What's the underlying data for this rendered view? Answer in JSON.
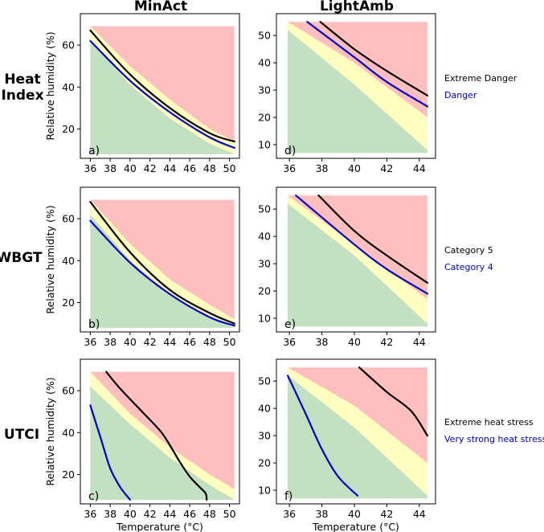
{
  "figure": {
    "column_titles": [
      "MinAct",
      "LightAmb"
    ],
    "row_titles": [
      [
        "Heat",
        "Index"
      ],
      [
        "WBGT"
      ],
      [
        "UTCI"
      ]
    ],
    "colors": {
      "danger_zone": "#ffbfbf",
      "transition_zone": "#ffffbf",
      "safe_zone": "#c2e0c2",
      "upper_threshold_line": "#000000",
      "lower_threshold_line": "#0000cc"
    }
  },
  "chart_data": [
    {
      "id": "a",
      "panel_label": "a)",
      "type": "area",
      "row": 0,
      "col": 0,
      "xlabel": "",
      "ylabel": "Relative humidity (%)",
      "xlim": [
        35.0,
        51.0
      ],
      "ylim": [
        6,
        75
      ],
      "xdomain": [
        36,
        50.5
      ],
      "xticks": [
        36,
        38,
        40,
        42,
        44,
        46,
        48,
        50
      ],
      "yticks": [
        20,
        40,
        60
      ],
      "regions_ymax": 69,
      "yellow_bottom": {
        "x": [
          36,
          40,
          44,
          48,
          50.5
        ],
        "y": [
          62,
          41,
          25,
          13,
          8
        ]
      },
      "yellow_top": {
        "x": [
          36,
          40,
          44,
          48,
          50.5
        ],
        "y": [
          69,
          50,
          34,
          20,
          14
        ]
      },
      "series": [
        {
          "name": "Extreme Danger",
          "x": [
            36,
            40,
            44,
            48,
            50.5
          ],
          "y": [
            67,
            46,
            30,
            18,
            14
          ]
        },
        {
          "name": "Danger",
          "x": [
            36,
            40,
            44,
            48,
            50.5
          ],
          "y": [
            62,
            43,
            28,
            16,
            11
          ]
        }
      ]
    },
    {
      "id": "b",
      "panel_label": "b)",
      "type": "area",
      "row": 1,
      "col": 0,
      "xlabel": "",
      "ylabel": "Relative humidity (%)",
      "xlim": [
        35.0,
        51.0
      ],
      "ylim": [
        6,
        75
      ],
      "xdomain": [
        36,
        50.5
      ],
      "xticks": [
        36,
        38,
        40,
        42,
        44,
        46,
        48,
        50
      ],
      "yticks": [
        20,
        40,
        60
      ],
      "regions_ymax": 69,
      "yellow_bottom": {
        "x": [
          36,
          40,
          44,
          48,
          50.5
        ],
        "y": [
          62,
          40,
          24,
          13,
          8
        ]
      },
      "yellow_top": {
        "x": [
          36,
          40,
          44,
          48,
          50.5
        ],
        "y": [
          69,
          48,
          31,
          19,
          12
        ]
      },
      "series": [
        {
          "name": "Category 5",
          "x": [
            36,
            40,
            44,
            48,
            50.5
          ],
          "y": [
            68,
            44,
            26,
            15,
            10
          ]
        },
        {
          "name": "Category 4",
          "x": [
            36,
            40,
            44,
            48,
            50.5
          ],
          "y": [
            59,
            39,
            24,
            13,
            9
          ]
        }
      ]
    },
    {
      "id": "c",
      "panel_label": "c)",
      "type": "area",
      "row": 2,
      "col": 0,
      "xlabel": "Temperature (°C)",
      "ylabel": "Relative humidity (%)",
      "xlim": [
        35.0,
        51.0
      ],
      "ylim": [
        6,
        75
      ],
      "xdomain": [
        36,
        50.5
      ],
      "xticks": [
        36,
        38,
        40,
        42,
        44,
        46,
        48,
        50
      ],
      "yticks": [
        20,
        40,
        60
      ],
      "regions_ymax": 69,
      "yellow_bottom": {
        "x": [
          36,
          40,
          44,
          48,
          50.5
        ],
        "y": [
          62,
          44,
          28,
          15,
          8
        ]
      },
      "yellow_top": {
        "x": [
          36,
          40,
          44,
          48,
          50.5
        ],
        "y": [
          69,
          49,
          33,
          20,
          13
        ]
      },
      "series": [
        {
          "name": "Extreme heat stress",
          "x": [
            37.6,
            39,
            41,
            43,
            44,
            45,
            46,
            47,
            47.6,
            47.7
          ],
          "y": [
            69,
            61,
            51,
            41,
            34,
            26,
            19,
            14,
            11,
            8
          ]
        },
        {
          "name": "Very strong heat stress",
          "x": [
            36,
            37,
            38,
            39,
            40
          ],
          "y": [
            53,
            38,
            23,
            14,
            8
          ]
        }
      ]
    },
    {
      "id": "d",
      "panel_label": "d)",
      "type": "area",
      "row": 0,
      "col": 1,
      "xlabel": "",
      "ylabel": "",
      "xlim": [
        35.2,
        45.0
      ],
      "ylim": [
        5,
        58
      ],
      "xdomain": [
        35.9,
        44.5
      ],
      "xticks": [
        36,
        38,
        40,
        42,
        44
      ],
      "yticks": [
        10,
        20,
        30,
        40,
        50
      ],
      "regions_ymax": 55,
      "yellow_bottom": {
        "x": [
          35.9,
          40,
          44.5
        ],
        "y": [
          52,
          32,
          8
        ]
      },
      "yellow_top": {
        "x": [
          35.9,
          40,
          44.5
        ],
        "y": [
          55,
          40,
          20
        ]
      },
      "series": [
        {
          "name": "Extreme Danger",
          "x": [
            37.9,
            40,
            42,
            44.5
          ],
          "y": [
            55,
            45,
            37,
            28
          ]
        },
        {
          "name": "Danger",
          "x": [
            37.1,
            40,
            42,
            44.5
          ],
          "y": [
            55,
            42,
            33,
            24
          ]
        }
      ]
    },
    {
      "id": "e",
      "panel_label": "e)",
      "type": "area",
      "row": 1,
      "col": 1,
      "xlabel": "",
      "ylabel": "",
      "xlim": [
        35.2,
        45.0
      ],
      "ylim": [
        5,
        58
      ],
      "xdomain": [
        35.9,
        44.5
      ],
      "xticks": [
        36,
        38,
        40,
        42,
        44
      ],
      "yticks": [
        10,
        20,
        30,
        40,
        50
      ],
      "regions_ymax": 55,
      "yellow_bottom": {
        "x": [
          35.9,
          40,
          44.5
        ],
        "y": [
          52,
          33,
          8
        ]
      },
      "yellow_top": {
        "x": [
          35.9,
          40,
          44.5
        ],
        "y": [
          55,
          37,
          17
        ]
      },
      "series": [
        {
          "name": "Category 5",
          "x": [
            37.8,
            40,
            42,
            44.5
          ],
          "y": [
            55,
            42,
            33,
            23
          ]
        },
        {
          "name": "Category 4",
          "x": [
            36.4,
            40,
            42,
            44.5
          ],
          "y": [
            55,
            37,
            28,
            19
          ]
        }
      ]
    },
    {
      "id": "f",
      "panel_label": "f)",
      "type": "area",
      "row": 2,
      "col": 1,
      "xlabel": "Temperature (°C)",
      "ylabel": "",
      "xlim": [
        35.2,
        45.0
      ],
      "ylim": [
        5,
        58
      ],
      "xdomain": [
        35.9,
        44.5
      ],
      "xticks": [
        36,
        38,
        40,
        42,
        44
      ],
      "yticks": [
        10,
        20,
        30,
        40,
        50
      ],
      "regions_ymax": 55,
      "yellow_bottom": {
        "x": [
          35.9,
          40,
          44.5
        ],
        "y": [
          52,
          33,
          8
        ]
      },
      "yellow_top": {
        "x": [
          35.9,
          40,
          44.5
        ],
        "y": [
          55,
          41,
          20
        ]
      },
      "series": [
        {
          "name": "Extreme heat stress",
          "x": [
            40.3,
            42,
            43.5,
            44.5
          ],
          "y": [
            55,
            46,
            39,
            30
          ]
        },
        {
          "name": "Very strong heat stress",
          "x": [
            35.9,
            37,
            38,
            39,
            40.2
          ],
          "y": [
            52,
            38,
            25,
            15,
            8
          ]
        }
      ]
    }
  ],
  "legends": [
    {
      "row": 0,
      "upper": "Extreme Danger",
      "lower": "Danger"
    },
    {
      "row": 1,
      "upper": "Category 5",
      "lower": "Category 4"
    },
    {
      "row": 2,
      "upper": "Extreme heat stress",
      "lower": "Very strong heat stress"
    }
  ]
}
